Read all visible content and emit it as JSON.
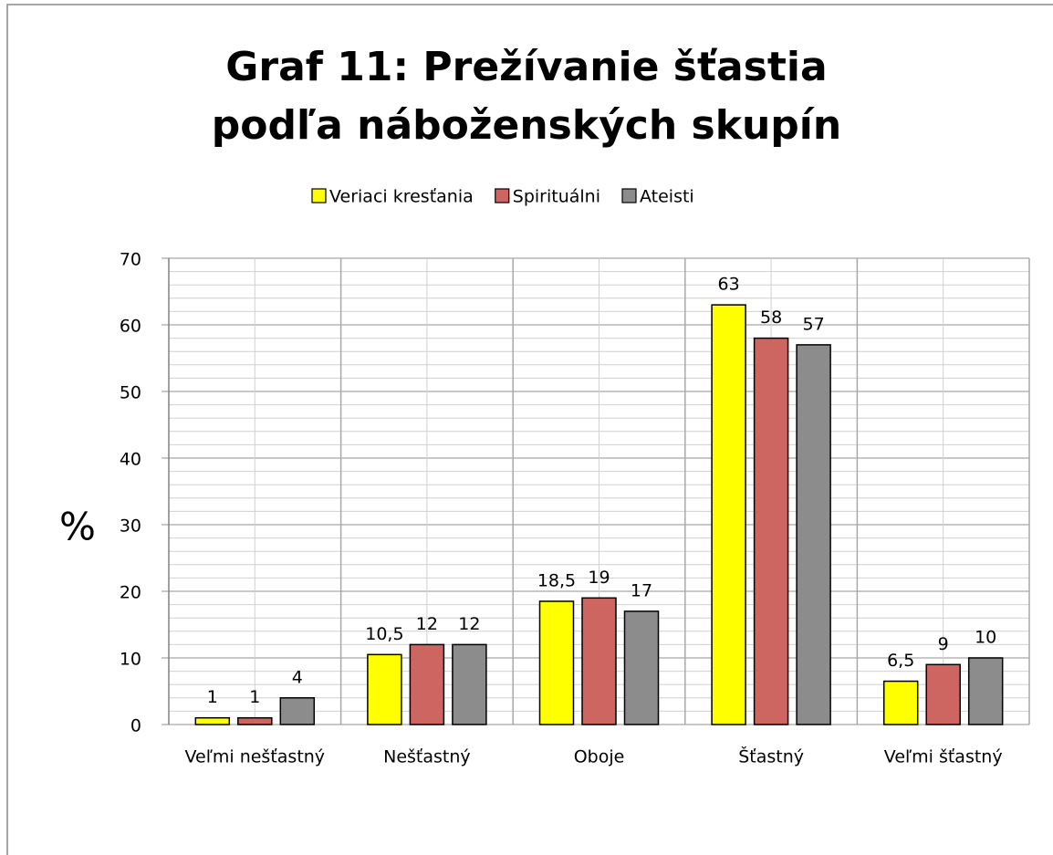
{
  "chart_data": {
    "type": "bar",
    "title": "Graf 11: Prežívanie šťastia podľa náboženských skupín",
    "y_label": "%",
    "categories": [
      "Veľmi nešťastný",
      "Nešťastný",
      "Oboje",
      "Šťastný",
      "Veľmi šťastný"
    ],
    "series": [
      {
        "name": "Veriaci kresťania",
        "color": "#ffff00",
        "values": [
          1,
          10.5,
          18.5,
          63,
          6.5
        ],
        "value_labels": [
          "1",
          "10,5",
          "18,5",
          "63",
          "6,5"
        ]
      },
      {
        "name": "Spirituálni",
        "color": "#cd6660",
        "values": [
          1,
          12,
          19,
          58,
          9
        ],
        "value_labels": [
          "1",
          "12",
          "19",
          "58",
          "9"
        ]
      },
      {
        "name": "Ateisti",
        "color": "#8c8c8c",
        "values": [
          4,
          12,
          17,
          57,
          10
        ],
        "value_labels": [
          "4",
          "12",
          "17",
          "57",
          "10"
        ]
      }
    ],
    "ylim": [
      0,
      70
    ],
    "yticks": [
      0,
      10,
      20,
      30,
      40,
      50,
      60,
      70
    ],
    "grid": true,
    "legend": "top"
  }
}
